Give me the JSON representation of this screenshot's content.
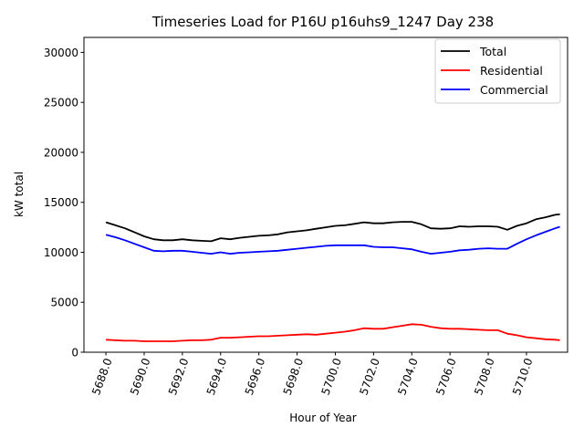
{
  "chart_data": {
    "type": "line",
    "title": "Timeseries Load for P16U p16uhs9_1247  Day 238",
    "xlabel": "Hour of Year",
    "ylabel": "kW total",
    "xlim": [
      5686.85,
      5712.15
    ],
    "ylim": [
      0,
      31500
    ],
    "grid": false,
    "legend_position": "top-right",
    "x_ticks": [
      5688,
      5690,
      5692,
      5694,
      5696,
      5698,
      5700,
      5702,
      5704,
      5706,
      5708,
      5710
    ],
    "x_tick_labels": [
      "5688.0",
      "5690.0",
      "5692.0",
      "5694.0",
      "5696.0",
      "5698.0",
      "5700.0",
      "5702.0",
      "5704.0",
      "5706.0",
      "5708.0",
      "5710.0"
    ],
    "y_ticks": [
      0,
      5000,
      10000,
      15000,
      20000,
      25000,
      30000
    ],
    "y_tick_labels": [
      "0",
      "5000",
      "10000",
      "15000",
      "20000",
      "25000",
      "30000"
    ],
    "x": [
      5688.0,
      5688.5,
      5689.0,
      5689.5,
      5690.0,
      5690.5,
      5691.0,
      5691.5,
      5692.0,
      5692.5,
      5693.0,
      5693.5,
      5694.0,
      5694.5,
      5695.0,
      5695.5,
      5696.0,
      5696.5,
      5697.0,
      5697.5,
      5698.0,
      5698.5,
      5699.0,
      5699.5,
      5700.0,
      5700.5,
      5701.0,
      5701.5,
      5702.0,
      5702.5,
      5703.0,
      5703.5,
      5704.0,
      5704.5,
      5705.0,
      5705.5,
      5706.0,
      5706.5,
      5707.0,
      5707.5,
      5708.0,
      5708.5,
      5709.0,
      5709.5,
      5710.0,
      5710.5,
      5711.0,
      5711.5,
      5711.75
    ],
    "series": [
      {
        "name": "Total",
        "color": "#000000",
        "values": [
          13000,
          12700,
          12400,
          12000,
          11600,
          11300,
          11200,
          11200,
          11300,
          11200,
          11150,
          11100,
          11400,
          11300,
          11450,
          11550,
          11650,
          11700,
          11800,
          12000,
          12100,
          12200,
          12350,
          12500,
          12650,
          12700,
          12850,
          13000,
          12900,
          12900,
          13000,
          13050,
          13050,
          12800,
          12400,
          12350,
          12400,
          12600,
          12550,
          12600,
          12600,
          12550,
          12250,
          12650,
          12900,
          13300,
          13500,
          13750,
          13800
        ]
      },
      {
        "name": "Residential",
        "color": "#ff0000",
        "values": [
          1250,
          1200,
          1150,
          1150,
          1100,
          1100,
          1100,
          1100,
          1150,
          1200,
          1200,
          1250,
          1450,
          1450,
          1500,
          1550,
          1600,
          1600,
          1650,
          1700,
          1750,
          1800,
          1750,
          1850,
          1950,
          2050,
          2200,
          2400,
          2350,
          2350,
          2500,
          2650,
          2800,
          2750,
          2550,
          2400,
          2350,
          2350,
          2300,
          2250,
          2200,
          2200,
          1850,
          1700,
          1500,
          1400,
          1300,
          1250,
          1200
        ]
      },
      {
        "name": "Commercial",
        "color": "#0000ff",
        "values": [
          11750,
          11500,
          11200,
          10850,
          10500,
          10150,
          10100,
          10150,
          10150,
          10050,
          9950,
          9850,
          10000,
          9850,
          9950,
          10000,
          10050,
          10100,
          10150,
          10250,
          10350,
          10450,
          10550,
          10650,
          10700,
          10700,
          10700,
          10700,
          10550,
          10500,
          10500,
          10400,
          10300,
          10050,
          9850,
          9950,
          10050,
          10200,
          10250,
          10350,
          10400,
          10350,
          10350,
          10850,
          11300,
          11700,
          12050,
          12400,
          12550
        ]
      }
    ]
  }
}
